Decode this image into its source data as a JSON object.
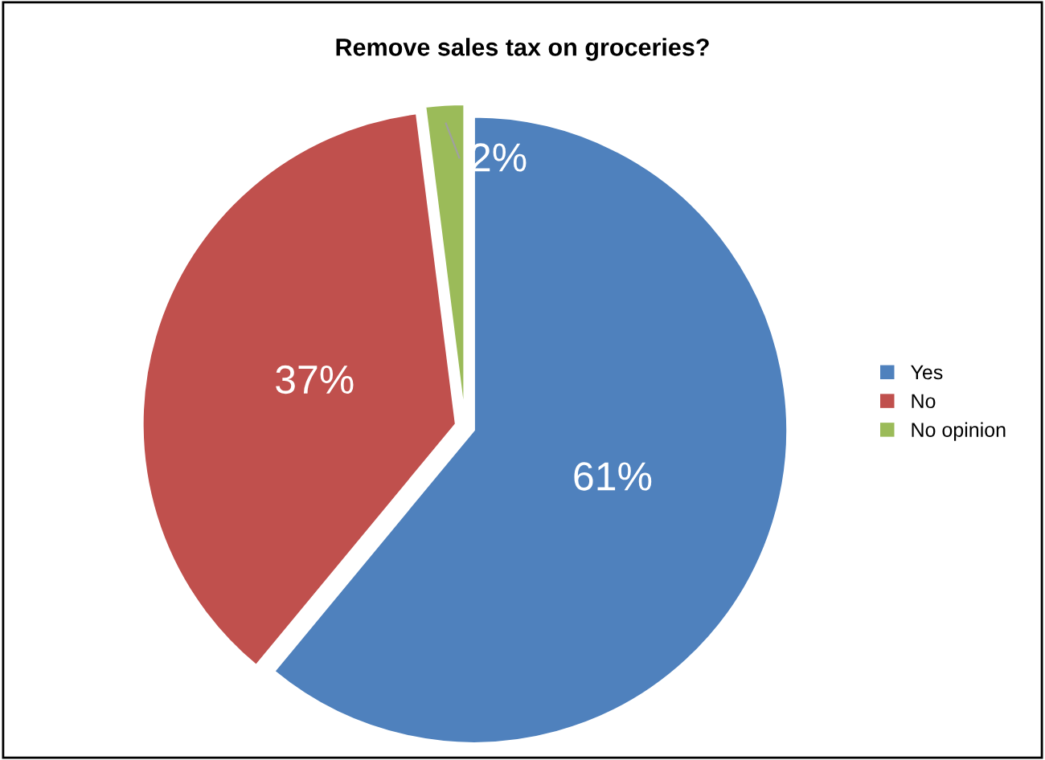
{
  "chart_data": {
    "type": "pie",
    "title": "Remove sales tax on groceries?",
    "categories": [
      "Yes",
      "No",
      "No opinion"
    ],
    "values": [
      61,
      37,
      2
    ],
    "colors": [
      "#4f81bd",
      "#c0504d",
      "#9bbb59"
    ],
    "value_labels": [
      "61%",
      "37%",
      "2%"
    ],
    "legend": "right"
  }
}
